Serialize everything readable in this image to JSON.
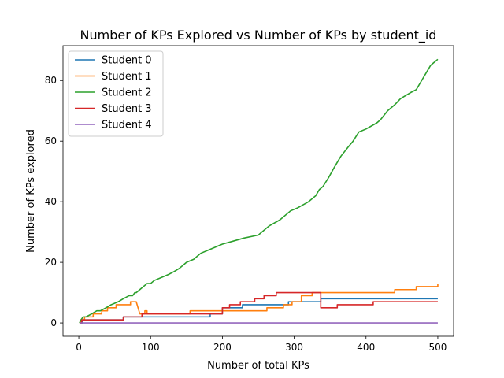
{
  "chart_data": {
    "type": "line",
    "title": "Number of KPs Explored vs Number of KPs by student_id",
    "xlabel": "Number of  total KPs",
    "ylabel": "Number of KPs explored",
    "xlim": [
      -22,
      522
    ],
    "ylim": [
      -4.4,
      91.5
    ],
    "xticks": [
      0,
      100,
      200,
      300,
      400,
      500
    ],
    "yticks": [
      0,
      20,
      40,
      60,
      80
    ],
    "grid": false,
    "legend": "top-left",
    "series": [
      {
        "name": "Student 0",
        "color": "#1f77b4",
        "step": true,
        "x": [
          1,
          5,
          22,
          62,
          87,
          183,
          200,
          228,
          292,
          337,
          500
        ],
        "y": [
          0,
          1,
          1,
          2,
          2,
          3,
          5,
          6,
          7,
          8,
          8
        ]
      },
      {
        "name": "Student 1",
        "color": "#ff7f0e",
        "step": true,
        "x": [
          1,
          3,
          8,
          12,
          20,
          32,
          40,
          52,
          62,
          72,
          80,
          85,
          88,
          92,
          95,
          155,
          185,
          262,
          285,
          297,
          310,
          325,
          345,
          410,
          440,
          470,
          500
        ],
        "y": [
          0,
          1,
          2,
          2,
          3,
          4,
          5,
          6,
          6,
          7,
          7,
          3,
          3,
          4,
          3,
          4,
          4,
          5,
          6,
          7,
          9,
          10,
          10,
          10,
          11,
          12,
          13
        ],
        "interpolate_segments": [
          [
            80,
            85
          ]
        ]
      },
      {
        "name": "Student 2",
        "color": "#2ca02c",
        "step": false,
        "x": [
          1,
          3,
          6,
          10,
          18,
          25,
          30,
          38,
          45,
          55,
          62,
          70,
          75,
          78,
          80,
          85,
          90,
          95,
          100,
          105,
          115,
          125,
          133,
          140,
          145,
          150,
          160,
          165,
          170,
          180,
          190,
          200,
          215,
          230,
          250,
          265,
          280,
          295,
          305,
          320,
          330,
          335,
          340,
          348,
          355,
          365,
          375,
          382,
          390,
          400,
          415,
          420,
          430,
          440,
          448,
          455,
          462,
          470,
          475,
          480,
          485,
          490,
          495,
          500
        ],
        "y": [
          0,
          1,
          2,
          2,
          3,
          4,
          4,
          5,
          6,
          7,
          8,
          9,
          9,
          10,
          10,
          11,
          12,
          13,
          13,
          14,
          15,
          16,
          17,
          18,
          19,
          20,
          21,
          22,
          23,
          24,
          25,
          26,
          27,
          28,
          29,
          32,
          34,
          37,
          38,
          40,
          42,
          44,
          45,
          48,
          51,
          55,
          58,
          60,
          63,
          64,
          66,
          67,
          70,
          72,
          74,
          75,
          76,
          77,
          79,
          81,
          83,
          85,
          86,
          87
        ]
      },
      {
        "name": "Student 3",
        "color": "#d62728",
        "step": true,
        "x": [
          1,
          4,
          62,
          88,
          183,
          200,
          210,
          225,
          245,
          258,
          275,
          290,
          337,
          360,
          410,
          435,
          500
        ],
        "y": [
          0,
          1,
          2,
          3,
          3,
          5,
          6,
          7,
          8,
          9,
          10,
          10,
          5,
          6,
          7,
          7,
          7
        ]
      },
      {
        "name": "Student 4",
        "color": "#9467bd",
        "step": true,
        "x": [
          1,
          500
        ],
        "y": [
          0,
          0
        ]
      }
    ]
  }
}
